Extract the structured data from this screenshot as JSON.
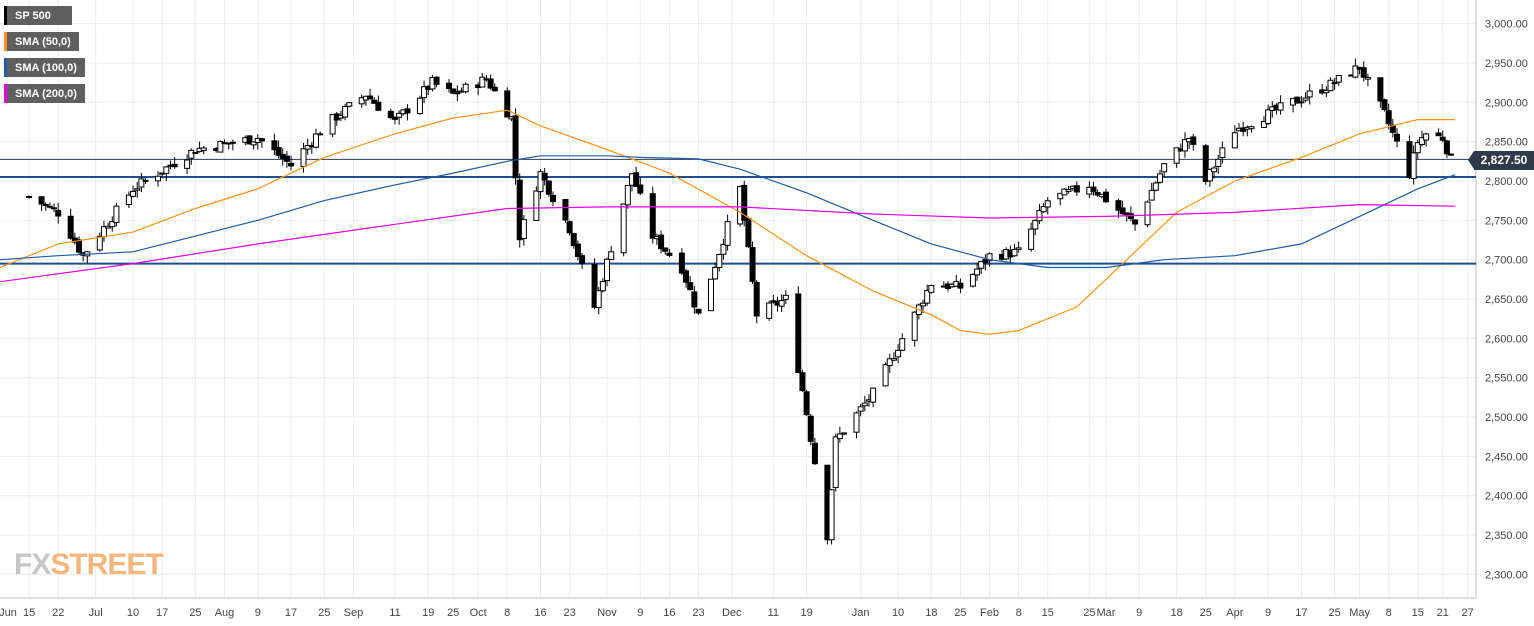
{
  "legend": [
    {
      "label": "SP 500",
      "color": "#000000"
    },
    {
      "label": "SMA (50,0)",
      "color": "#f7931a"
    },
    {
      "label": "SMA (100,0)",
      "color": "#1f5ba6"
    },
    {
      "label": "SMA (200,0)",
      "color": "#e600e6"
    }
  ],
  "branding": {
    "fx": "FX",
    "street": "STREET"
  },
  "last_price": "2,827.50",
  "chart_data": {
    "type": "candlestick",
    "title": "",
    "ylim": [
      2270,
      3030
    ],
    "y_ticks": [
      2300,
      2350,
      2400,
      2450,
      2500,
      2550,
      2600,
      2650,
      2700,
      2750,
      2800,
      2850,
      2900,
      2950,
      3000
    ],
    "y_tick_labels": [
      "2,300.00",
      "2,350.00",
      "2,400.00",
      "2,450.00",
      "2,500.00",
      "2,550.00",
      "2,600.00",
      "2,650.00",
      "2,700.00",
      "2,750.00",
      "2,800.00",
      "2,850.00",
      "2,900.00",
      "2,950.00",
      "3,000.00"
    ],
    "x_tick_labels": [
      "Jun",
      "15",
      "22",
      "Jul",
      "10",
      "17",
      "25",
      "Aug",
      "9",
      "17",
      "25",
      "Sep",
      "11",
      "19",
      "25",
      "Oct",
      "8",
      "16",
      "23",
      "Nov",
      "9",
      "16",
      "23",
      "Dec",
      "11",
      "19",
      "Jan",
      "10",
      "18",
      "25",
      "Feb",
      "8",
      "15",
      "25",
      "Mar",
      "9",
      "18",
      "25",
      "Apr",
      "9",
      "17",
      "25",
      "May",
      "8",
      "15",
      "21",
      "27"
    ],
    "horizontal_levels": [
      2805,
      2695
    ],
    "last_price": 2827.5,
    "grid": true,
    "legend_position": "top-left",
    "anchors": [
      {
        "date": "Jun 15",
        "close": 2780
      },
      {
        "date": "Jun 22",
        "close": 2760
      },
      {
        "date": "Jun 28",
        "close": 2705
      },
      {
        "date": "Jul 10",
        "close": 2790
      },
      {
        "date": "Jul 25",
        "close": 2840
      },
      {
        "date": "Aug 9",
        "close": 2855
      },
      {
        "date": "Aug 17",
        "close": 2820
      },
      {
        "date": "Aug 25",
        "close": 2870
      },
      {
        "date": "Sep 4",
        "close": 2910
      },
      {
        "date": "Sep 11",
        "close": 2875
      },
      {
        "date": "Sep 20",
        "close": 2925
      },
      {
        "date": "Sep 25",
        "close": 2910
      },
      {
        "date": "Oct 3",
        "close": 2930
      },
      {
        "date": "Oct 9",
        "close": 2880
      },
      {
        "date": "Oct 11",
        "close": 2730
      },
      {
        "date": "Oct 16",
        "close": 2810
      },
      {
        "date": "Oct 23",
        "close": 2740
      },
      {
        "date": "Oct 29",
        "close": 2640
      },
      {
        "date": "Nov 7",
        "close": 2810
      },
      {
        "date": "Nov 12",
        "close": 2730
      },
      {
        "date": "Nov 19",
        "close": 2690
      },
      {
        "date": "Nov 23",
        "close": 2630
      },
      {
        "date": "Dec 3",
        "close": 2790
      },
      {
        "date": "Dec 7",
        "close": 2630
      },
      {
        "date": "Dec 14",
        "close": 2650
      },
      {
        "date": "Dec 19",
        "close": 2505
      },
      {
        "date": "Dec 24",
        "close": 2350
      },
      {
        "date": "Dec 26",
        "close": 2470
      },
      {
        "date": "Jan 4",
        "close": 2530
      },
      {
        "date": "Jan 10",
        "close": 2590
      },
      {
        "date": "Jan 18",
        "close": 2670
      },
      {
        "date": "Jan 25",
        "close": 2665
      },
      {
        "date": "Feb 1",
        "close": 2705
      },
      {
        "date": "Feb 8",
        "close": 2710
      },
      {
        "date": "Feb 15",
        "close": 2775
      },
      {
        "date": "Feb 25",
        "close": 2795
      },
      {
        "date": "Mar 8",
        "close": 2745
      },
      {
        "date": "Mar 15",
        "close": 2820
      },
      {
        "date": "Mar 21",
        "close": 2855
      },
      {
        "date": "Mar 25",
        "close": 2800
      },
      {
        "date": "Apr 1",
        "close": 2865
      },
      {
        "date": "Apr 9",
        "close": 2885
      },
      {
        "date": "Apr 17",
        "close": 2905
      },
      {
        "date": "Apr 25",
        "close": 2925
      },
      {
        "date": "May 1",
        "close": 2945
      },
      {
        "date": "May 7",
        "close": 2885
      },
      {
        "date": "May 13",
        "close": 2810
      },
      {
        "date": "May 15",
        "close": 2850
      },
      {
        "date": "May 17",
        "close": 2860
      },
      {
        "date": "May 21",
        "close": 2855
      },
      {
        "date": "May 23",
        "close": 2827.5
      }
    ],
    "series": [
      {
        "name": "SMA (50,0)",
        "color": "#f7931a",
        "points": [
          [
            "Jun 8",
            2690
          ],
          [
            "Jun 22",
            2720
          ],
          [
            "Jul 10",
            2735
          ],
          [
            "Jul 25",
            2765
          ],
          [
            "Aug 9",
            2790
          ],
          [
            "Aug 25",
            2830
          ],
          [
            "Sep 11",
            2860
          ],
          [
            "Sep 25",
            2880
          ],
          [
            "Oct 8",
            2890
          ],
          [
            "Oct 16",
            2870
          ],
          [
            "Nov 1",
            2840
          ],
          [
            "Nov 16",
            2810
          ],
          [
            "Dec 3",
            2760
          ],
          [
            "Dec 19",
            2705
          ],
          [
            "Jan 4",
            2660
          ],
          [
            "Jan 18",
            2630
          ],
          [
            "Jan 25",
            2610
          ],
          [
            "Feb 1",
            2605
          ],
          [
            "Feb 8",
            2610
          ],
          [
            "Feb 22",
            2640
          ],
          [
            "Mar 8",
            2710
          ],
          [
            "Mar 18",
            2760
          ],
          [
            "Apr 1",
            2800
          ],
          [
            "Apr 17",
            2830
          ],
          [
            "May 1",
            2860
          ],
          [
            "May 15",
            2878
          ],
          [
            "May 24",
            2878
          ]
        ]
      },
      {
        "name": "SMA (100,0)",
        "color": "#1f5ba6",
        "points": [
          [
            "Jun 8",
            2700
          ],
          [
            "Jun 22",
            2705
          ],
          [
            "Jul 10",
            2710
          ],
          [
            "Jul 25",
            2730
          ],
          [
            "Aug 9",
            2750
          ],
          [
            "Aug 25",
            2775
          ],
          [
            "Sep 11",
            2795
          ],
          [
            "Sep 25",
            2810
          ],
          [
            "Oct 8",
            2825
          ],
          [
            "Oct 16",
            2832
          ],
          [
            "Nov 1",
            2832
          ],
          [
            "Nov 9",
            2830
          ],
          [
            "Nov 23",
            2828
          ],
          [
            "Dec 3",
            2815
          ],
          [
            "Dec 19",
            2785
          ],
          [
            "Jan 4",
            2750
          ],
          [
            "Jan 18",
            2720
          ],
          [
            "Feb 1",
            2700
          ],
          [
            "Feb 15",
            2690
          ],
          [
            "Mar 1",
            2690
          ],
          [
            "Mar 15",
            2700
          ],
          [
            "Apr 1",
            2705
          ],
          [
            "Apr 17",
            2720
          ],
          [
            "May 1",
            2755
          ],
          [
            "May 15",
            2790
          ],
          [
            "May 24",
            2808
          ]
        ]
      },
      {
        "name": "SMA (200,0)",
        "color": "#e600e6",
        "points": [
          [
            "Jun 8",
            2672
          ],
          [
            "Jul 10",
            2695
          ],
          [
            "Aug 9",
            2720
          ],
          [
            "Sep 11",
            2745
          ],
          [
            "Oct 8",
            2765
          ],
          [
            "Nov 1",
            2767
          ],
          [
            "Dec 3",
            2767
          ],
          [
            "Jan 4",
            2758
          ],
          [
            "Feb 1",
            2753
          ],
          [
            "Mar 1",
            2755
          ],
          [
            "Apr 1",
            2760
          ],
          [
            "May 1",
            2770
          ],
          [
            "May 24",
            2768
          ]
        ]
      }
    ]
  }
}
